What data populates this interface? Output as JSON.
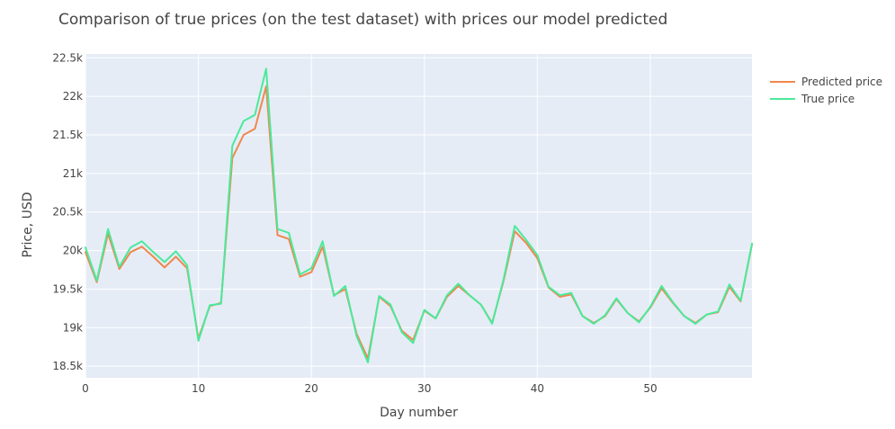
{
  "chart_data": {
    "type": "line",
    "title": "Comparison of true prices (on the test dataset) with prices our model predicted",
    "xlabel": "Day number",
    "ylabel": "Price, USD",
    "xlim": [
      0,
      59
    ],
    "ylim": [
      18350,
      22550
    ],
    "x_ticks": [
      0,
      10,
      20,
      30,
      40,
      50
    ],
    "x_tick_labels": [
      "0",
      "10",
      "20",
      "30",
      "40",
      "50"
    ],
    "y_ticks": [
      18500,
      19000,
      19500,
      20000,
      20500,
      21000,
      21500,
      22000,
      22500
    ],
    "y_tick_labels": [
      "18.5k",
      "19k",
      "19.5k",
      "20k",
      "20.5k",
      "21k",
      "21.5k",
      "22k",
      "22.5k"
    ],
    "grid": true,
    "legend_position": "top-right",
    "plot_background": "#E5ECF6",
    "x": [
      0,
      1,
      2,
      3,
      4,
      5,
      6,
      7,
      8,
      9,
      10,
      11,
      12,
      13,
      14,
      15,
      16,
      17,
      18,
      19,
      20,
      21,
      22,
      23,
      24,
      25,
      26,
      27,
      28,
      29,
      30,
      31,
      32,
      33,
      34,
      35,
      36,
      37,
      38,
      39,
      40,
      41,
      42,
      43,
      44,
      45,
      46,
      47,
      48,
      49,
      50,
      51,
      52,
      53,
      54,
      55,
      56,
      57,
      58,
      59
    ],
    "series": [
      {
        "name": "Predicted price",
        "color": "#F0874E",
        "values": [
          19980,
          19590,
          20220,
          19760,
          19980,
          20050,
          19920,
          19780,
          19920,
          19770,
          18860,
          19280,
          19320,
          21200,
          21500,
          21580,
          22130,
          20200,
          20150,
          19660,
          19720,
          20050,
          19420,
          19500,
          18920,
          18600,
          19400,
          19280,
          18960,
          18840,
          19220,
          19120,
          19400,
          19540,
          19420,
          19300,
          19060,
          19600,
          20250,
          20100,
          19900,
          19520,
          19400,
          19430,
          19150,
          19060,
          19150,
          19370,
          19190,
          19080,
          19260,
          19510,
          19320,
          19150,
          19060,
          19170,
          19200,
          19530,
          19340,
          20080
        ]
      },
      {
        "name": "True price",
        "color": "#4AEA9A",
        "values": [
          20040,
          19610,
          20280,
          19790,
          20040,
          20120,
          19980,
          19850,
          19990,
          19810,
          18830,
          19290,
          19310,
          21360,
          21680,
          21760,
          22360,
          20280,
          20230,
          19690,
          19770,
          20120,
          19410,
          19540,
          18890,
          18550,
          19410,
          19300,
          18940,
          18800,
          19230,
          19120,
          19420,
          19570,
          19420,
          19300,
          19050,
          19620,
          20320,
          20140,
          19940,
          19530,
          19420,
          19450,
          19150,
          19050,
          19160,
          19380,
          19190,
          19070,
          19270,
          19540,
          19330,
          19150,
          19050,
          19170,
          19210,
          19560,
          19350,
          20090
        ]
      }
    ]
  }
}
